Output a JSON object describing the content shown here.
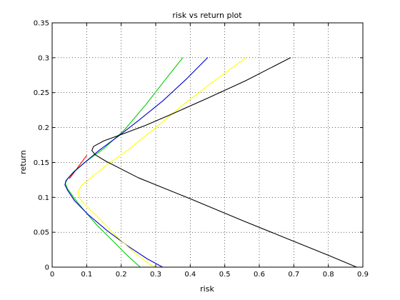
{
  "chart_data": {
    "type": "line",
    "title": "risk vs return plot",
    "xlabel": "risk",
    "ylabel": "return",
    "xlim": [
      0,
      0.9
    ],
    "ylim": [
      0,
      0.35
    ],
    "grid": true,
    "x_ticks": [
      0,
      0.1,
      0.2,
      0.3,
      0.4,
      0.5,
      0.6,
      0.7,
      0.8,
      0.9
    ],
    "x_tick_labels": [
      "0",
      "0.1",
      "0.2",
      "0.3",
      "0.4",
      "0.5",
      "0.6",
      "0.7",
      "0.8",
      "0.9"
    ],
    "y_ticks": [
      0,
      0.05,
      0.1,
      0.15,
      0.2,
      0.25,
      0.3,
      0.35
    ],
    "y_tick_labels": [
      "0",
      "0.05",
      "0.1",
      "0.15",
      "0.2",
      "0.25",
      "0.3",
      "0.35"
    ],
    "series": [
      {
        "color": "#ff0000",
        "points": [
          [
            0.1,
            0.16
          ],
          [
            0.085,
            0.15
          ],
          [
            0.07,
            0.14
          ],
          [
            0.058,
            0.132
          ],
          [
            0.05,
            0.127
          ]
        ]
      },
      {
        "color": "#00cc00",
        "points": [
          [
            0.378,
            0.3
          ],
          [
            0.33,
            0.27
          ],
          [
            0.27,
            0.232
          ],
          [
            0.21,
            0.197
          ],
          [
            0.15,
            0.17
          ],
          [
            0.1,
            0.152
          ],
          [
            0.065,
            0.138
          ],
          [
            0.045,
            0.127
          ],
          [
            0.038,
            0.12
          ],
          [
            0.045,
            0.112
          ],
          [
            0.065,
            0.098
          ],
          [
            0.095,
            0.08
          ],
          [
            0.13,
            0.06
          ],
          [
            0.175,
            0.038
          ],
          [
            0.215,
            0.018
          ],
          [
            0.255,
            0.0
          ]
        ]
      },
      {
        "color": "#0000cc",
        "points": [
          [
            0.45,
            0.3
          ],
          [
            0.39,
            0.27
          ],
          [
            0.32,
            0.238
          ],
          [
            0.25,
            0.21
          ],
          [
            0.19,
            0.187
          ],
          [
            0.135,
            0.167
          ],
          [
            0.09,
            0.148
          ],
          [
            0.06,
            0.135
          ],
          [
            0.04,
            0.124
          ],
          [
            0.037,
            0.118
          ],
          [
            0.045,
            0.11
          ],
          [
            0.065,
            0.095
          ],
          [
            0.105,
            0.075
          ],
          [
            0.16,
            0.052
          ],
          [
            0.22,
            0.03
          ],
          [
            0.275,
            0.012
          ],
          [
            0.32,
            0.0
          ]
        ]
      },
      {
        "color": "#ffff00",
        "points": [
          [
            0.562,
            0.3
          ],
          [
            0.47,
            0.267
          ],
          [
            0.38,
            0.233
          ],
          [
            0.3,
            0.2
          ],
          [
            0.22,
            0.168
          ],
          [
            0.16,
            0.147
          ],
          [
            0.11,
            0.127
          ],
          [
            0.085,
            0.117
          ],
          [
            0.075,
            0.108
          ],
          [
            0.08,
            0.098
          ],
          [
            0.105,
            0.085
          ],
          [
            0.14,
            0.068
          ],
          [
            0.185,
            0.045
          ],
          [
            0.235,
            0.022
          ],
          [
            0.28,
            0.005
          ],
          [
            0.3,
            0.0
          ]
        ]
      },
      {
        "color": "#000000",
        "points": [
          [
            0.69,
            0.3
          ],
          [
            0.56,
            0.267
          ],
          [
            0.45,
            0.242
          ],
          [
            0.35,
            0.22
          ],
          [
            0.27,
            0.203
          ],
          [
            0.2,
            0.19
          ],
          [
            0.15,
            0.181
          ],
          [
            0.12,
            0.173
          ],
          [
            0.115,
            0.167
          ],
          [
            0.125,
            0.161
          ],
          [
            0.155,
            0.152
          ],
          [
            0.25,
            0.128
          ],
          [
            0.4,
            0.098
          ],
          [
            0.55,
            0.067
          ],
          [
            0.7,
            0.037
          ],
          [
            0.8,
            0.017
          ],
          [
            0.882,
            0.0
          ]
        ]
      }
    ]
  }
}
